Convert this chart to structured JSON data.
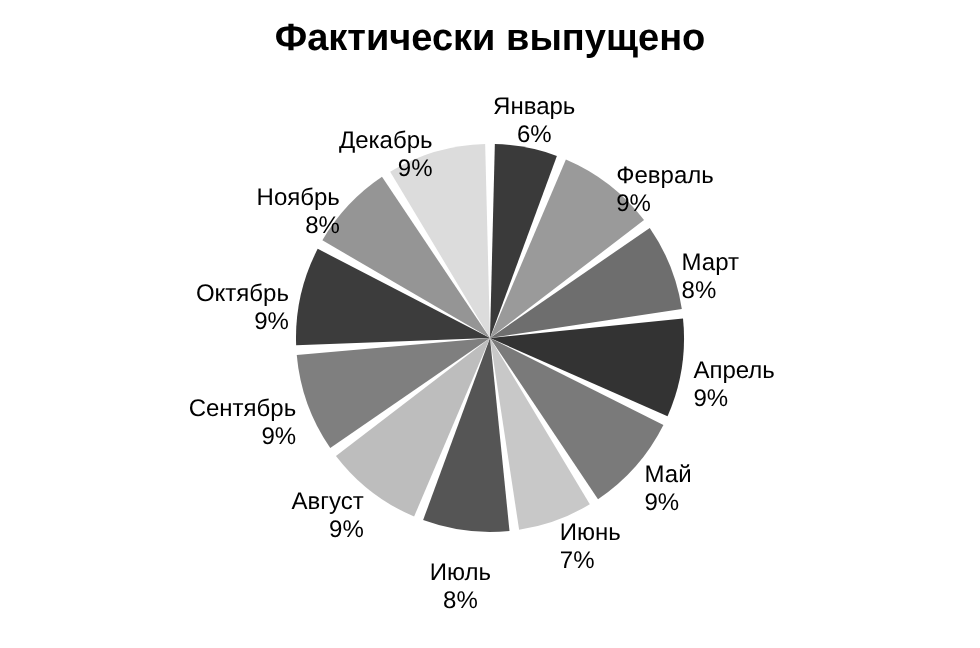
{
  "chart_data": {
    "type": "pie",
    "title": "Фактически выпущено",
    "categories": [
      "Январь",
      "Февраль",
      "Март",
      "Апрель",
      "Май",
      "Июнь",
      "Июль",
      "Август",
      "Сентябрь",
      "Октябрь",
      "Ноябрь",
      "Декабрь"
    ],
    "values": [
      6,
      9,
      8,
      9,
      9,
      7,
      8,
      9,
      9,
      9,
      8,
      9
    ],
    "value_labels": [
      "6%",
      "9%",
      "8%",
      "9%",
      "9%",
      "7%",
      "8%",
      "9%",
      "9%",
      "9%",
      "8%",
      "9%"
    ],
    "colors": [
      "#3a3a3a",
      "#9a9a9a",
      "#6e6e6e",
      "#333333",
      "#7a7a7a",
      "#c8c8c8",
      "#555555",
      "#bdbdbd",
      "#7f7f7f",
      "#3c3c3c",
      "#959595",
      "#dcdcdc"
    ],
    "legend": false
  }
}
